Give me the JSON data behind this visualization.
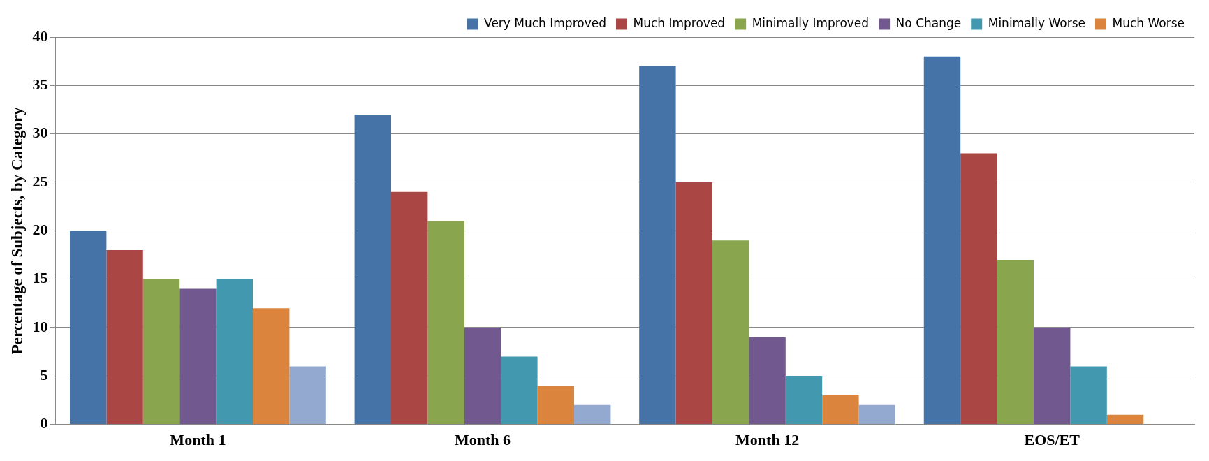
{
  "chart_data": {
    "type": "bar",
    "ylabel": "Percentage of Subjects, by Category",
    "categories": [
      "Month 1",
      "Month 6",
      "Month 12",
      "EOS/ET"
    ],
    "series": [
      {
        "name": "Very Much Improved",
        "color": "#4572a7",
        "values": [
          20,
          32,
          37,
          38
        ]
      },
      {
        "name": "Much Improved",
        "color": "#aa4643",
        "values": [
          18,
          24,
          25,
          28
        ]
      },
      {
        "name": "Minimally Improved",
        "color": "#89a54e",
        "values": [
          15,
          21,
          19,
          17
        ]
      },
      {
        "name": "No Change",
        "color": "#71588f",
        "values": [
          14,
          10,
          9,
          10
        ]
      },
      {
        "name": "Minimally Worse",
        "color": "#4198af",
        "values": [
          15,
          7,
          5,
          6
        ]
      },
      {
        "name": "Much Worse",
        "color": "#db843d",
        "values": [
          12,
          4,
          3,
          1
        ]
      },
      {
        "color": "#93a9cf",
        "values": [
          6,
          2,
          2,
          0
        ]
      }
    ],
    "ylim": [
      0,
      40
    ],
    "yticks": [
      0,
      5,
      10,
      15,
      20,
      25,
      30,
      35,
      40
    ],
    "grid": "y",
    "legend": "top right"
  }
}
